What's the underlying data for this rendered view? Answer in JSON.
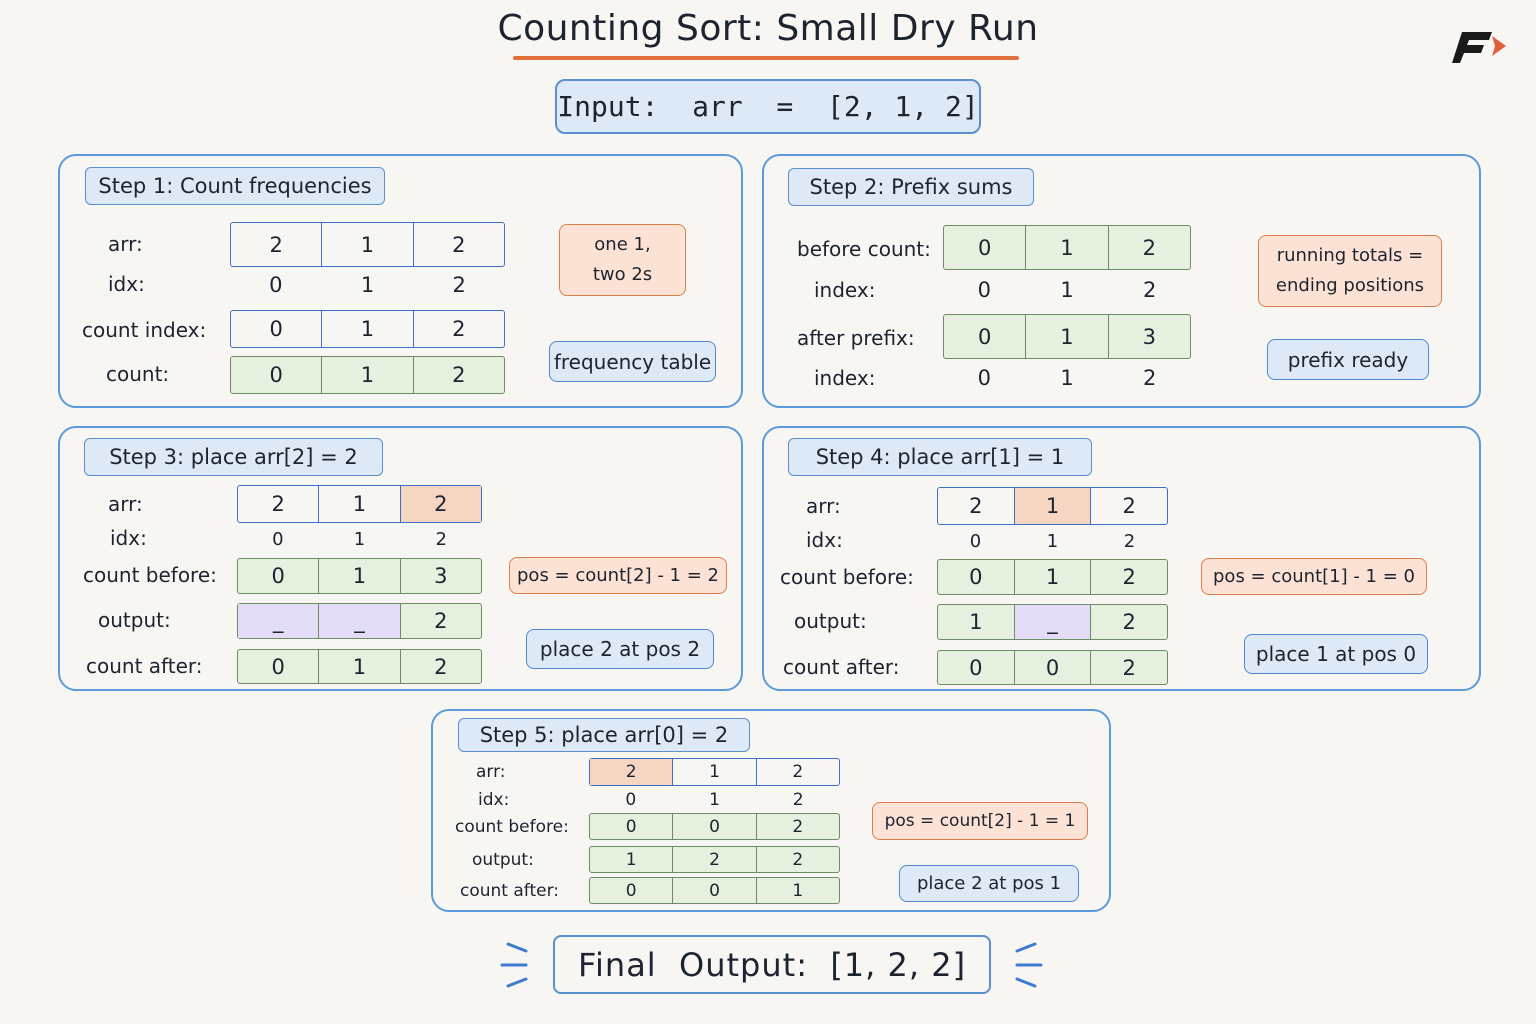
{
  "title": "Counting Sort: Small Dry Run",
  "logo_icon": "brand-logo-f-arrow",
  "colors": {
    "accent_orange": "#e0713a",
    "panel_blue": "#5b9bd9",
    "highlight": "#f6d5c2",
    "empty_slot": "#e2dcf6",
    "count_green": "#e7efdf"
  },
  "input": "Input:  arr  =  [2, 1, 2]",
  "step1": {
    "title": "Step 1: Count frequencies",
    "labels": {
      "arr": "arr:",
      "idx": "idx:",
      "count_index": "count index:",
      "count": "count:"
    },
    "arr": [
      "2",
      "1",
      "2"
    ],
    "idx": [
      "0",
      "1",
      "2"
    ],
    "count_index": [
      "0",
      "1",
      "2"
    ],
    "count": [
      "0",
      "1",
      "2"
    ],
    "note": "one 1,\ntwo 2s",
    "tag": "frequency table"
  },
  "step2": {
    "title": "Step 2: Prefix sums",
    "labels": {
      "before": "before count:",
      "index1": "index:",
      "after": "after prefix:",
      "index2": "index:"
    },
    "before": [
      "0",
      "1",
      "2"
    ],
    "index1": [
      "0",
      "1",
      "2"
    ],
    "after": [
      "0",
      "1",
      "3"
    ],
    "index2": [
      "0",
      "1",
      "2"
    ],
    "note": "running totals =\nending positions",
    "tag": "prefix ready"
  },
  "step3": {
    "title": "Step 3: place arr[2] = 2",
    "labels": {
      "arr": "arr:",
      "idx": "idx:",
      "count_before": "count before:",
      "output": "output:",
      "count_after": "count after:"
    },
    "arr": [
      "2",
      "1",
      "2"
    ],
    "idx": [
      "0",
      "1",
      "2"
    ],
    "count_before": [
      "0",
      "1",
      "3"
    ],
    "output": [
      "_",
      "_",
      "2"
    ],
    "count_after": [
      "0",
      "1",
      "2"
    ],
    "formula": "pos = count[2] - 1 = 2",
    "tag": "place 2 at pos 2"
  },
  "step4": {
    "title": "Step 4: place arr[1] = 1",
    "labels": {
      "arr": "arr:",
      "idx": "idx:",
      "count_before": "count before:",
      "output": "output:",
      "count_after": "count after:"
    },
    "arr": [
      "2",
      "1",
      "2"
    ],
    "idx": [
      "0",
      "1",
      "2"
    ],
    "count_before": [
      "0",
      "1",
      "2"
    ],
    "output": [
      "1",
      "_",
      "2"
    ],
    "count_after": [
      "0",
      "0",
      "2"
    ],
    "formula": "pos = count[1] - 1 = 0",
    "tag": "place 1 at pos 0"
  },
  "step5": {
    "title": "Step 5: place arr[0] = 2",
    "labels": {
      "arr": "arr:",
      "idx": "idx:",
      "count_before": "count before:",
      "output": "output:",
      "count_after": "count after:"
    },
    "arr": [
      "2",
      "1",
      "2"
    ],
    "idx": [
      "0",
      "1",
      "2"
    ],
    "count_before": [
      "0",
      "0",
      "2"
    ],
    "output": [
      "1",
      "2",
      "2"
    ],
    "count_after": [
      "0",
      "0",
      "1"
    ],
    "formula": "pos = count[2] - 1 = 1",
    "tag": "place 2 at pos 1"
  },
  "final": "Final  Output:  [1, 2, 2]"
}
